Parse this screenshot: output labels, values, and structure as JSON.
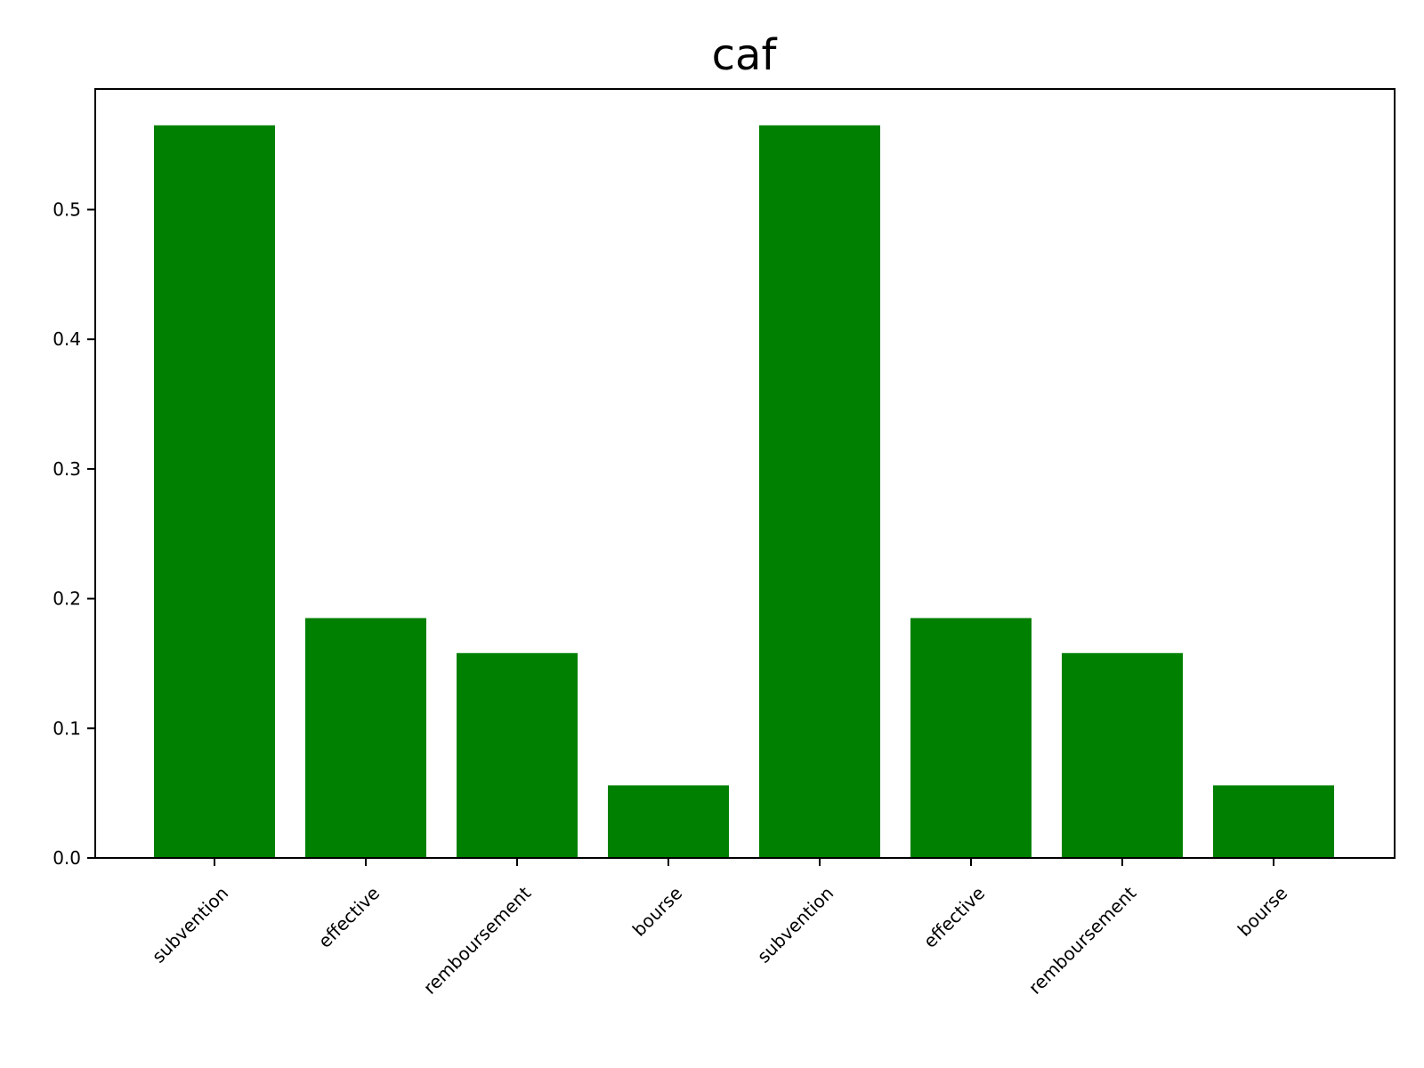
{
  "chart_data": {
    "type": "bar",
    "title": "caf",
    "xlabel": "",
    "ylabel": "",
    "categories": [
      "subvention",
      "effective",
      "remboursement",
      "bourse",
      "subvention",
      "effective",
      "remboursement",
      "bourse"
    ],
    "values": [
      0.565,
      0.185,
      0.158,
      0.056,
      0.565,
      0.185,
      0.158,
      0.056
    ],
    "ylim": [
      0,
      0.593
    ],
    "yticks": [
      "0.0",
      "0.1",
      "0.2",
      "0.3",
      "0.4",
      "0.5"
    ],
    "ytick_values": [
      0,
      0.1,
      0.2,
      0.3,
      0.4,
      0.5
    ],
    "bar_color": "#008000",
    "grid": false,
    "legend": "none"
  }
}
